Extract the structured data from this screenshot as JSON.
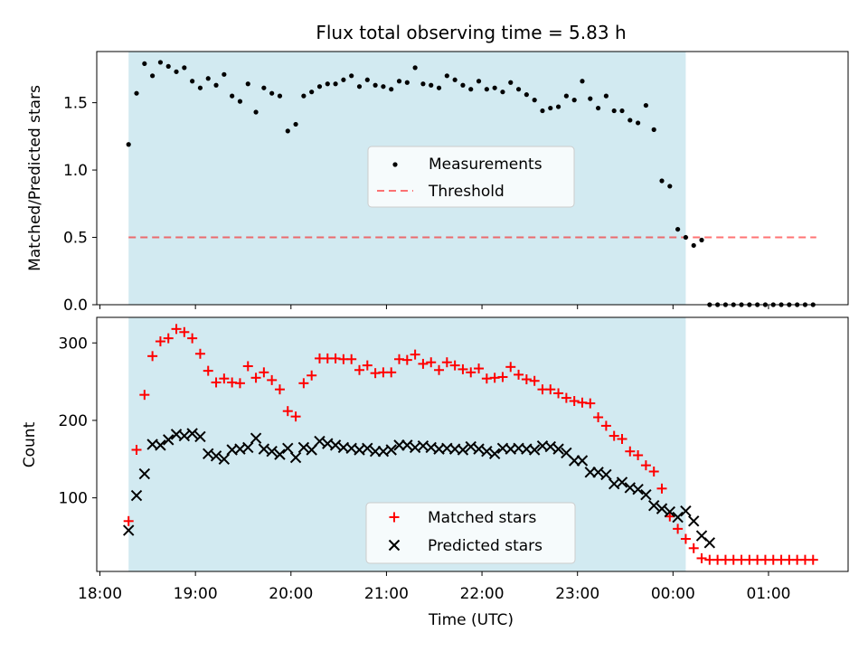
{
  "title": "Flux total observing time = 5.83 h",
  "colors": {
    "observing_span": "#add8e6",
    "measurement": "#000000",
    "threshold": "#ff0000",
    "matched": "#ff0000",
    "predicted": "#000000"
  },
  "chart_data": [
    {
      "type": "scatter",
      "panel": "top",
      "ylabel": "Matched/Predicted stars",
      "xlabel": "",
      "xlim": [
        "17:58",
        "01:50"
      ],
      "ylim": [
        0.0,
        1.88
      ],
      "yticks": [
        "0.0",
        "0.5",
        "1.0",
        "1.5"
      ],
      "x_tick_labels_shown": false,
      "observing_span": {
        "start": "18:18",
        "end": "00:08"
      },
      "threshold": {
        "name": "Threshold",
        "value": 0.5,
        "x_range": [
          "18:18",
          "01:30"
        ]
      },
      "legend": [
        "Measurements",
        "Threshold"
      ],
      "legend_position": "center",
      "grid": false,
      "series": [
        {
          "name": "Measurements",
          "x": [
            "18:18",
            "18:23",
            "18:28",
            "18:33",
            "18:38",
            "18:43",
            "18:48",
            "18:53",
            "18:58",
            "19:03",
            "19:08",
            "19:13",
            "19:18",
            "19:23",
            "19:28",
            "19:33",
            "19:38",
            "19:43",
            "19:48",
            "19:53",
            "19:58",
            "20:03",
            "20:08",
            "20:13",
            "20:18",
            "20:23",
            "20:28",
            "20:33",
            "20:38",
            "20:43",
            "20:48",
            "20:53",
            "20:58",
            "21:03",
            "21:08",
            "21:13",
            "21:18",
            "21:23",
            "21:28",
            "21:33",
            "21:38",
            "21:43",
            "21:48",
            "21:53",
            "21:58",
            "22:03",
            "22:08",
            "22:13",
            "22:18",
            "22:23",
            "22:28",
            "22:33",
            "22:38",
            "22:43",
            "22:48",
            "22:53",
            "22:58",
            "23:03",
            "23:08",
            "23:13",
            "23:18",
            "23:23",
            "23:28",
            "23:33",
            "23:38",
            "23:43",
            "23:48",
            "23:53",
            "23:58",
            "00:03",
            "00:08",
            "00:13",
            "00:18",
            "00:23",
            "00:28",
            "00:33",
            "00:38",
            "00:43",
            "00:48",
            "00:53",
            "00:58",
            "01:03",
            "01:08",
            "01:13",
            "01:18",
            "01:23",
            "01:28"
          ],
          "y": [
            1.19,
            1.57,
            1.79,
            1.7,
            1.8,
            1.77,
            1.73,
            1.76,
            1.66,
            1.61,
            1.68,
            1.63,
            1.71,
            1.55,
            1.51,
            1.64,
            1.43,
            1.61,
            1.57,
            1.55,
            1.29,
            1.34,
            1.55,
            1.58,
            1.62,
            1.64,
            1.64,
            1.67,
            1.7,
            1.62,
            1.67,
            1.63,
            1.62,
            1.6,
            1.66,
            1.65,
            1.76,
            1.64,
            1.63,
            1.61,
            1.7,
            1.67,
            1.63,
            1.6,
            1.66,
            1.6,
            1.61,
            1.58,
            1.65,
            1.6,
            1.56,
            1.52,
            1.44,
            1.46,
            1.47,
            1.55,
            1.52,
            1.66,
            1.53,
            1.46,
            1.55,
            1.44,
            1.44,
            1.37,
            1.35,
            1.48,
            1.3,
            0.92,
            0.88,
            0.56,
            0.5,
            0.44,
            0.48,
            0,
            0,
            0,
            0,
            0,
            0,
            0,
            0,
            0,
            0,
            0,
            0,
            0,
            0
          ]
        }
      ]
    },
    {
      "type": "scatter",
      "panel": "bottom",
      "xlabel": "Time (UTC)",
      "ylabel": "Count",
      "xlim": [
        "17:58",
        "01:50"
      ],
      "ylim": [
        5,
        333
      ],
      "xticks": [
        "18:00",
        "19:00",
        "20:00",
        "21:00",
        "22:00",
        "23:00",
        "00:00",
        "01:00"
      ],
      "yticks": [
        "100",
        "200",
        "300"
      ],
      "observing_span": {
        "start": "18:18",
        "end": "00:08"
      },
      "legend": [
        "Matched stars",
        "Predicted stars"
      ],
      "legend_position": "lower center",
      "grid": false,
      "series": [
        {
          "name": "Matched stars",
          "x": [
            "18:18",
            "18:23",
            "18:28",
            "18:33",
            "18:38",
            "18:43",
            "18:48",
            "18:53",
            "18:58",
            "19:03",
            "19:08",
            "19:13",
            "19:18",
            "19:23",
            "19:28",
            "19:33",
            "19:38",
            "19:43",
            "19:48",
            "19:53",
            "19:58",
            "20:03",
            "20:08",
            "20:13",
            "20:18",
            "20:23",
            "20:28",
            "20:33",
            "20:38",
            "20:43",
            "20:48",
            "20:53",
            "20:58",
            "21:03",
            "21:08",
            "21:13",
            "21:18",
            "21:23",
            "21:28",
            "21:33",
            "21:38",
            "21:43",
            "21:48",
            "21:53",
            "21:58",
            "22:03",
            "22:08",
            "22:13",
            "22:18",
            "22:23",
            "22:28",
            "22:33",
            "22:38",
            "22:43",
            "22:48",
            "22:53",
            "22:58",
            "23:03",
            "23:08",
            "23:13",
            "23:18",
            "23:23",
            "23:28",
            "23:33",
            "23:38",
            "23:43",
            "23:48",
            "23:53",
            "23:58",
            "00:03",
            "00:08",
            "00:13",
            "00:18",
            "00:23",
            "00:28",
            "00:33",
            "00:38",
            "00:43",
            "00:48",
            "00:53",
            "00:58",
            "01:03",
            "01:08",
            "01:13",
            "01:18",
            "01:23",
            "01:28"
          ],
          "y": [
            70,
            162,
            233,
            283,
            302,
            306,
            318,
            314,
            306,
            286,
            264,
            249,
            254,
            249,
            248,
            270,
            255,
            262,
            252,
            240,
            212,
            205,
            248,
            258,
            280,
            280,
            280,
            279,
            279,
            265,
            271,
            261,
            262,
            262,
            279,
            278,
            285,
            273,
            275,
            265,
            275,
            271,
            266,
            262,
            267,
            254,
            255,
            256,
            269,
            259,
            253,
            251,
            240,
            240,
            235,
            229,
            225,
            223,
            222,
            204,
            193,
            180,
            176,
            160,
            155,
            142,
            134,
            112,
            76,
            60,
            47,
            35,
            22,
            20,
            20,
            20,
            20,
            20,
            20,
            20,
            20,
            20,
            20,
            20,
            20,
            20,
            20
          ]
        },
        {
          "name": "Predicted stars",
          "x": [
            "18:18",
            "18:23",
            "18:28",
            "18:33",
            "18:38",
            "18:43",
            "18:48",
            "18:53",
            "18:58",
            "19:03",
            "19:08",
            "19:13",
            "19:18",
            "19:23",
            "19:28",
            "19:33",
            "19:38",
            "19:43",
            "19:48",
            "19:53",
            "19:58",
            "20:03",
            "20:08",
            "20:13",
            "20:18",
            "20:23",
            "20:28",
            "20:33",
            "20:38",
            "20:43",
            "20:48",
            "20:53",
            "20:58",
            "21:03",
            "21:08",
            "21:13",
            "21:18",
            "21:23",
            "21:28",
            "21:33",
            "21:38",
            "21:43",
            "21:48",
            "21:53",
            "21:58",
            "22:03",
            "22:08",
            "22:13",
            "22:18",
            "22:23",
            "22:28",
            "22:33",
            "22:38",
            "22:43",
            "22:48",
            "22:53",
            "22:58",
            "23:03",
            "23:08",
            "23:13",
            "23:18",
            "23:23",
            "23:28",
            "23:33",
            "23:38",
            "23:43",
            "23:48",
            "23:53",
            "23:58",
            "00:03",
            "00:08",
            "00:13",
            "00:18",
            "00:23"
          ],
          "y": [
            58,
            103,
            131,
            169,
            168,
            175,
            182,
            180,
            183,
            179,
            157,
            154,
            150,
            162,
            163,
            165,
            177,
            163,
            160,
            156,
            164,
            152,
            165,
            162,
            173,
            170,
            168,
            165,
            164,
            162,
            164,
            160,
            160,
            162,
            168,
            168,
            165,
            167,
            165,
            163,
            164,
            163,
            162,
            166,
            163,
            160,
            157,
            164,
            163,
            164,
            163,
            162,
            167,
            166,
            163,
            158,
            148,
            148,
            133,
            133,
            130,
            118,
            120,
            113,
            111,
            104,
            90,
            86,
            82,
            75,
            83,
            70,
            51,
            42
          ]
        }
      ]
    }
  ]
}
